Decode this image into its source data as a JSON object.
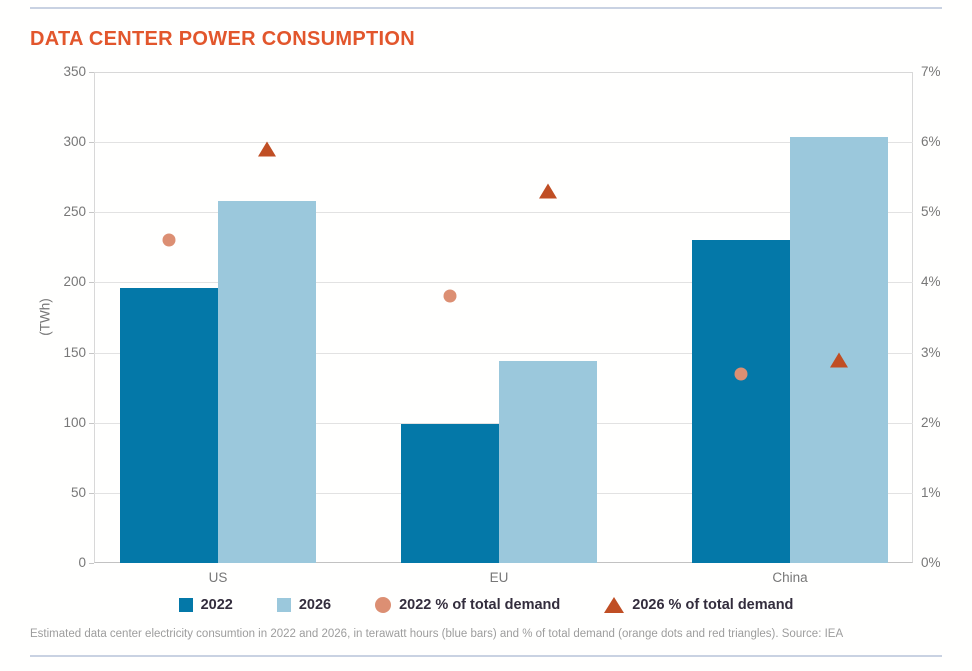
{
  "page": {
    "title": "DATA CENTER POWER CONSUMPTION",
    "caption": "Estimated data center electricity consumtion in 2022 and 2026, in terawatt hours (blue bars) and % of total demand (orange dots and red triangles). Source: IEA"
  },
  "colors": {
    "title": "#E2562C",
    "rule": "#C9D2E2",
    "axis_text": "#777777",
    "legend_text": "#332D3D",
    "caption_text": "#9D9D9D",
    "gridline": "#E2E2E2",
    "plot_border": "#D8D8D8"
  },
  "chart_data": {
    "type": "bar",
    "title": "DATA CENTER POWER CONSUMPTION",
    "categories": [
      "US",
      "EU",
      "China"
    ],
    "series": [
      {
        "name": "2022",
        "kind": "bar",
        "axis": "left",
        "unit": "TWh",
        "color": "#0478A8",
        "values": [
          196,
          99,
          230
        ]
      },
      {
        "name": "2026",
        "kind": "bar",
        "axis": "left",
        "unit": "TWh",
        "color": "#9BC8DC",
        "values": [
          258,
          144,
          304
        ]
      },
      {
        "name": "2022 % of total demand",
        "kind": "dot",
        "axis": "right",
        "unit": "%",
        "color": "#DC8F73",
        "values": [
          4.6,
          3.8,
          2.7
        ]
      },
      {
        "name": "2026 % of total demand",
        "kind": "triangle",
        "axis": "right",
        "unit": "%",
        "color": "#C04E24",
        "values": [
          5.9,
          5.3,
          2.9
        ]
      }
    ],
    "ylabel_left": "(TWh)",
    "ylim_left": [
      0,
      350
    ],
    "yticks_left": [
      "0",
      "50",
      "100",
      "150",
      "200",
      "250",
      "300",
      "350"
    ],
    "ylim_right": [
      0,
      7
    ],
    "yticks_right": [
      "0%",
      "1%",
      "2%",
      "3%",
      "4%",
      "5%",
      "6%",
      "7%"
    ],
    "grid": true,
    "legend_position": "bottom"
  }
}
